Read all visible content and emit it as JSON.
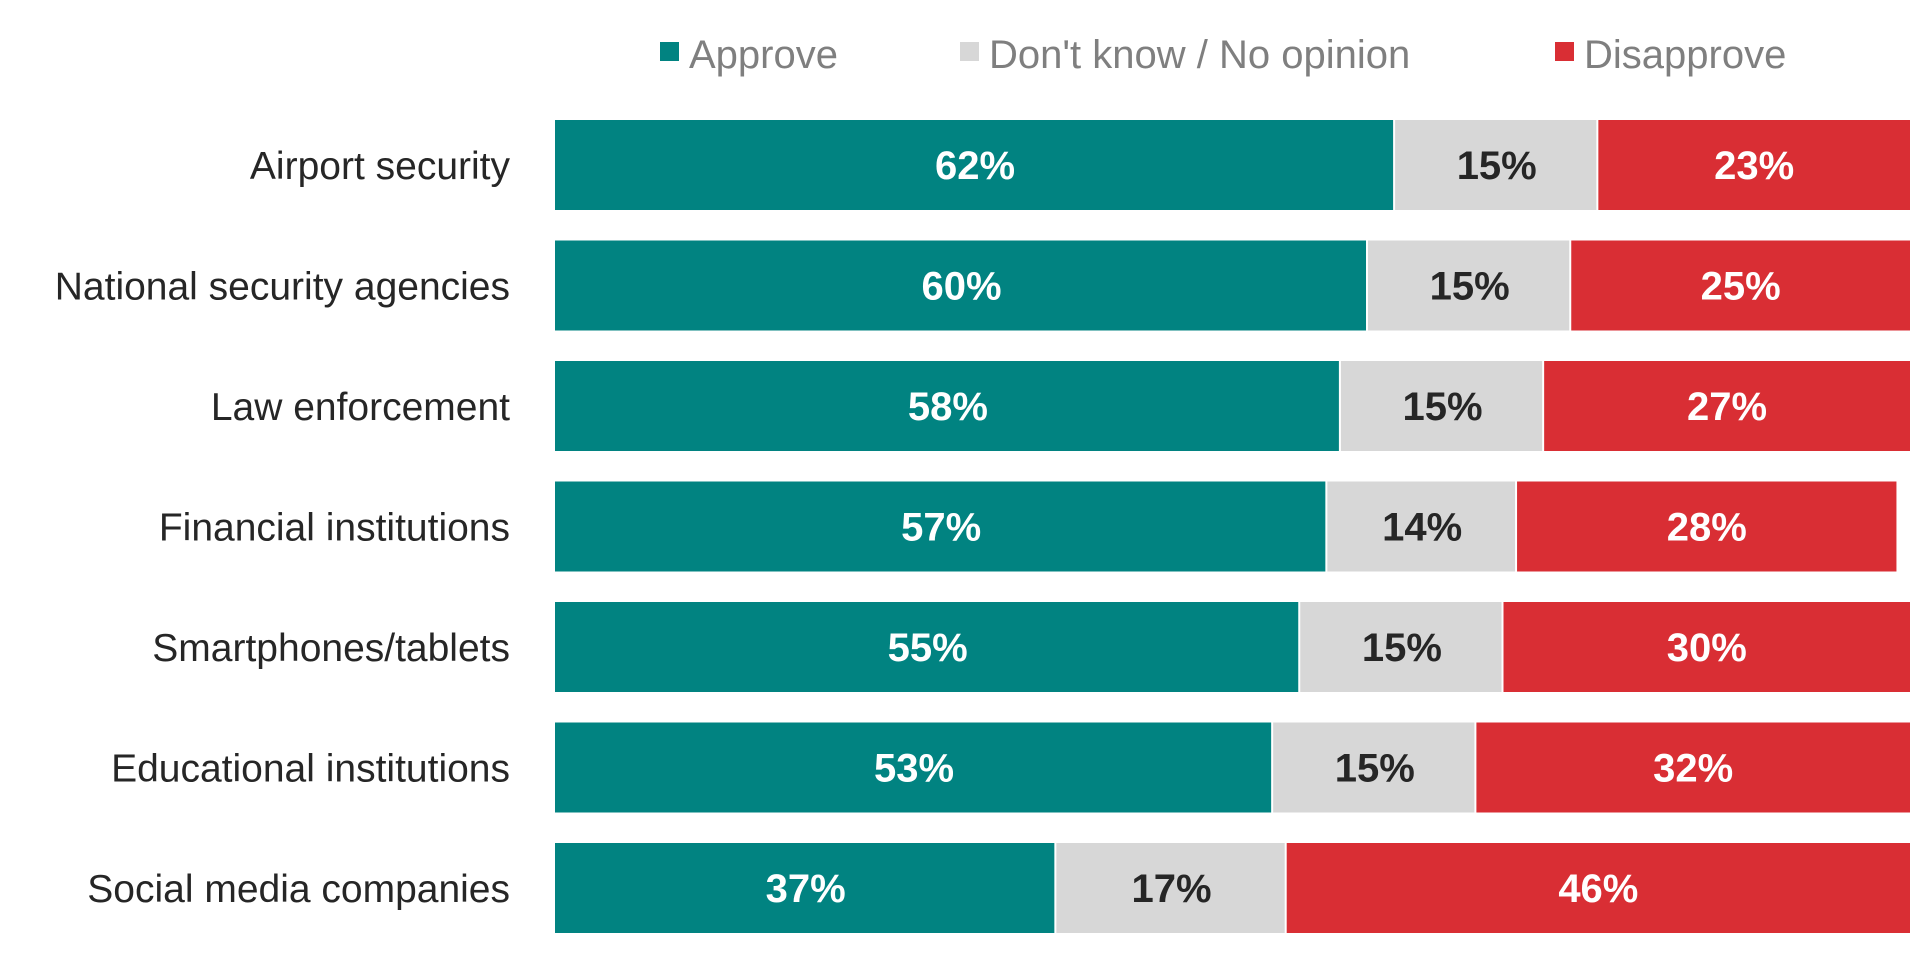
{
  "chart_data": {
    "type": "bar",
    "orientation": "horizontal",
    "stacked": true,
    "title": "",
    "xlabel": "",
    "ylabel": "",
    "xlim": [
      0,
      100
    ],
    "legend_position": "top",
    "categories": [
      "Airport security",
      "National security agencies",
      "Law enforcement",
      "Financial institutions",
      "Smartphones/tablets",
      "Educational institutions",
      "Social media companies"
    ],
    "series": [
      {
        "name": "Approve",
        "color": "#018381",
        "label_color": "#ffffff",
        "values": [
          62,
          60,
          58,
          57,
          55,
          53,
          37
        ],
        "labels": [
          "62%",
          "60%",
          "58%",
          "57%",
          "55%",
          "53%",
          "37%"
        ]
      },
      {
        "name": "Don't know / No opinion",
        "color": "#d7d7d7",
        "label_color": "#262626",
        "values": [
          15,
          15,
          15,
          14,
          15,
          15,
          17
        ],
        "labels": [
          "15%",
          "15%",
          "15%",
          "14%",
          "15%",
          "15%",
          "17%"
        ]
      },
      {
        "name": "Disapprove",
        "color": "#d92e34",
        "label_color": "#ffffff",
        "values": [
          23,
          25,
          27,
          28,
          30,
          32,
          46
        ],
        "labels": [
          "23%",
          "25%",
          "27%",
          "28%",
          "30%",
          "32%",
          "46%"
        ]
      }
    ]
  }
}
